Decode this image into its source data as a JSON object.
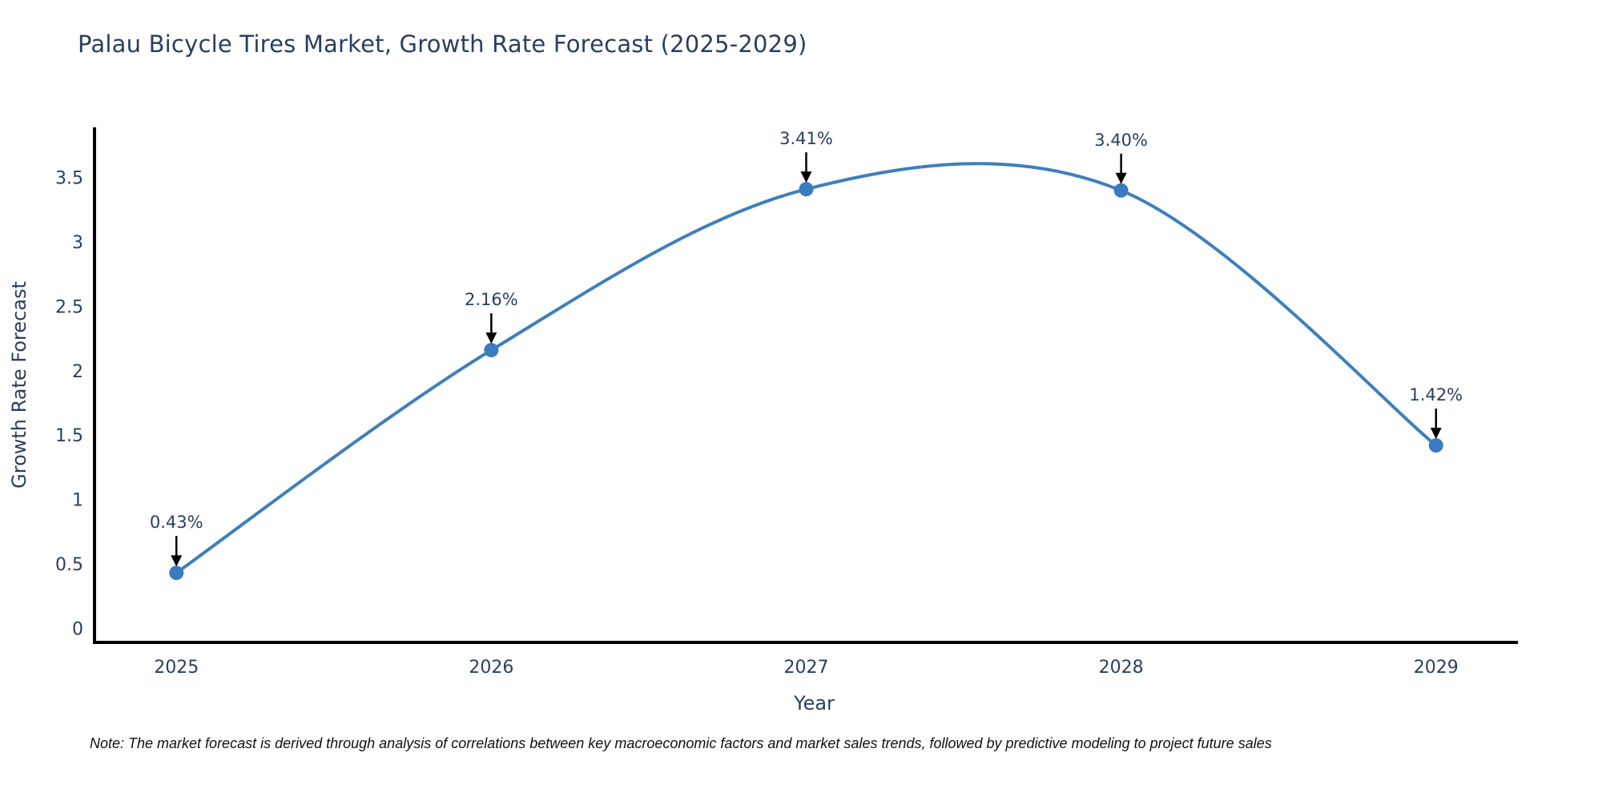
{
  "chart_data": {
    "type": "line",
    "title": "Palau Bicycle Tires Market, Growth Rate Forecast (2025-2029)",
    "xlabel": "Year",
    "ylabel": "Growth Rate Forecast",
    "x": [
      2025,
      2026,
      2027,
      2028,
      2029
    ],
    "values": [
      0.43,
      2.16,
      3.41,
      3.4,
      1.42
    ],
    "point_labels": [
      "0.43%",
      "2.16%",
      "3.41%",
      "3.40%",
      "1.42%"
    ],
    "xticks": [
      "2025",
      "2026",
      "2027",
      "2028",
      "2029"
    ],
    "yticks": [
      0,
      0.5,
      1,
      1.5,
      2,
      2.5,
      3,
      3.5
    ],
    "xlim": [
      2024.74,
      2029.26
    ],
    "ylim": [
      -0.11,
      3.89
    ],
    "line_shape": "spline",
    "grid": false,
    "legend_position": "none",
    "colors": {
      "line": "#3f7fba",
      "marker": "#3a7cbe",
      "axis": "#000000",
      "text": "#2a3f5f",
      "annotation_text": "#2a3f5f",
      "arrow": "#000000",
      "background": "#ffffff"
    }
  },
  "note": "Note: The market forecast is derived through analysis of correlations between key macroeconomic factors and market sales trends, followed by predictive modeling to project future sales"
}
